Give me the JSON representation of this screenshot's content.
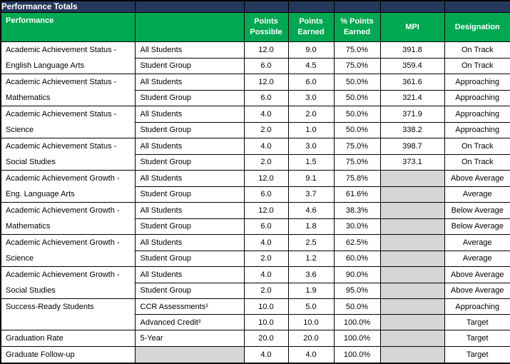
{
  "title": "Performance Totals",
  "colors": {
    "navy": "#24395B",
    "green": "#00A851",
    "gray": "#D6D6D6",
    "border": "#000000",
    "header_text": "#FFFFFF",
    "body_text": "#000000"
  },
  "columns": [
    {
      "label": "Performance"
    },
    {
      "label": ""
    },
    {
      "label": "Points Possible"
    },
    {
      "label": "Points Earned"
    },
    {
      "label": "% Points Earned"
    },
    {
      "label": "MPI"
    },
    {
      "label": "Designation"
    }
  ],
  "rows": [
    {
      "category_lines": [
        "Academic Achievement Status -",
        "English Language Arts"
      ],
      "category_rowspan": 2,
      "subgroup": "All Students",
      "subgroup_gray": false,
      "points_possible": "12.0",
      "points_earned": "9.0",
      "pct_points_earned": "75.0%",
      "mpi": "391.8",
      "mpi_gray": false,
      "designation": "On Track"
    },
    {
      "subgroup": "Student Group",
      "subgroup_gray": false,
      "points_possible": "6.0",
      "points_earned": "4.5",
      "pct_points_earned": "75.0%",
      "mpi": "359.4",
      "mpi_gray": false,
      "designation": "On Track"
    },
    {
      "category_lines": [
        "Academic Achievement Status -",
        "Mathematics"
      ],
      "category_rowspan": 2,
      "subgroup": "All Students",
      "subgroup_gray": false,
      "points_possible": "12.0",
      "points_earned": "6.0",
      "pct_points_earned": "50.0%",
      "mpi": "361.6",
      "mpi_gray": false,
      "designation": "Approaching"
    },
    {
      "subgroup": "Student Group",
      "subgroup_gray": false,
      "points_possible": "6.0",
      "points_earned": "3.0",
      "pct_points_earned": "50.0%",
      "mpi": "321.4",
      "mpi_gray": false,
      "designation": "Approaching"
    },
    {
      "category_lines": [
        "Academic Achievement Status -",
        "Science"
      ],
      "category_rowspan": 2,
      "subgroup": "All Students",
      "subgroup_gray": false,
      "points_possible": "4.0",
      "points_earned": "2.0",
      "pct_points_earned": "50.0%",
      "mpi": "371.9",
      "mpi_gray": false,
      "designation": "Approaching"
    },
    {
      "subgroup": "Student Group",
      "subgroup_gray": false,
      "points_possible": "2.0",
      "points_earned": "1.0",
      "pct_points_earned": "50.0%",
      "mpi": "338.2",
      "mpi_gray": false,
      "designation": "Approaching"
    },
    {
      "category_lines": [
        "Academic Achievement Status -",
        "Social Studies"
      ],
      "category_rowspan": 2,
      "subgroup": "All Students",
      "subgroup_gray": false,
      "points_possible": "4.0",
      "points_earned": "3.0",
      "pct_points_earned": "75.0%",
      "mpi": "398.7",
      "mpi_gray": false,
      "designation": "On Track"
    },
    {
      "subgroup": "Student Group",
      "subgroup_gray": false,
      "points_possible": "2.0",
      "points_earned": "1.5",
      "pct_points_earned": "75.0%",
      "mpi": "373.1",
      "mpi_gray": false,
      "designation": "On Track"
    },
    {
      "category_lines": [
        "Academic Achievement Growth -",
        "Eng. Language Arts"
      ],
      "category_rowspan": 2,
      "subgroup": "All Students",
      "subgroup_gray": false,
      "points_possible": "12.0",
      "points_earned": "9.1",
      "pct_points_earned": "75.8%",
      "mpi": "",
      "mpi_gray": true,
      "designation": "Above Average"
    },
    {
      "subgroup": "Student Group",
      "subgroup_gray": false,
      "points_possible": "6.0",
      "points_earned": "3.7",
      "pct_points_earned": "61.6%",
      "mpi": "",
      "mpi_gray": true,
      "designation": "Average"
    },
    {
      "category_lines": [
        "Academic Achievement Growth -",
        "Mathematics"
      ],
      "category_rowspan": 2,
      "subgroup": "All Students",
      "subgroup_gray": false,
      "points_possible": "12.0",
      "points_earned": "4.6",
      "pct_points_earned": "38.3%",
      "mpi": "",
      "mpi_gray": true,
      "designation": "Below Average"
    },
    {
      "subgroup": "Student Group",
      "subgroup_gray": false,
      "points_possible": "6.0",
      "points_earned": "1.8",
      "pct_points_earned": "30.0%",
      "mpi": "",
      "mpi_gray": true,
      "designation": "Below Average"
    },
    {
      "category_lines": [
        "Academic Achievement Growth -",
        "Science"
      ],
      "category_rowspan": 2,
      "subgroup": "All Students",
      "subgroup_gray": false,
      "points_possible": "4.0",
      "points_earned": "2.5",
      "pct_points_earned": "62.5%",
      "mpi": "",
      "mpi_gray": true,
      "designation": "Average"
    },
    {
      "subgroup": "Student Group",
      "subgroup_gray": false,
      "points_possible": "2.0",
      "points_earned": "1.2",
      "pct_points_earned": "60.0%",
      "mpi": "",
      "mpi_gray": true,
      "designation": "Average"
    },
    {
      "category_lines": [
        "Academic Achievement Growth -",
        "Social Studies"
      ],
      "category_rowspan": 2,
      "subgroup": "All Students",
      "subgroup_gray": false,
      "points_possible": "4.0",
      "points_earned": "3.6",
      "pct_points_earned": "90.0%",
      "mpi": "",
      "mpi_gray": true,
      "designation": "Above Average"
    },
    {
      "subgroup": "Student Group",
      "subgroup_gray": false,
      "points_possible": "2.0",
      "points_earned": "1.9",
      "pct_points_earned": "95.0%",
      "mpi": "",
      "mpi_gray": true,
      "designation": "Above Average"
    },
    {
      "category_lines": [
        "Success-Ready Students"
      ],
      "category_rowspan": 2,
      "subgroup": "CCR Assessments¹",
      "subgroup_gray": false,
      "points_possible": "10.0",
      "points_earned": "5.0",
      "pct_points_earned": "50.0%",
      "mpi": "",
      "mpi_gray": true,
      "designation": "Approaching"
    },
    {
      "subgroup": "Advanced Credit²",
      "subgroup_gray": false,
      "points_possible": "10.0",
      "points_earned": "10.0",
      "pct_points_earned": "100.0%",
      "mpi": "",
      "mpi_gray": true,
      "designation": "Target"
    },
    {
      "category_lines": [
        "Graduation Rate"
      ],
      "category_rowspan": 1,
      "subgroup": "5-Year",
      "subgroup_gray": false,
      "points_possible": "20.0",
      "points_earned": "20.0",
      "pct_points_earned": "100.0%",
      "mpi": "",
      "mpi_gray": true,
      "designation": "Target"
    },
    {
      "category_lines": [
        "Graduate Follow-up"
      ],
      "category_rowspan": 1,
      "subgroup": "",
      "subgroup_gray": true,
      "points_possible": "4.0",
      "points_earned": "4.0",
      "pct_points_earned": "100.0%",
      "mpi": "",
      "mpi_gray": true,
      "designation": "Target"
    }
  ]
}
